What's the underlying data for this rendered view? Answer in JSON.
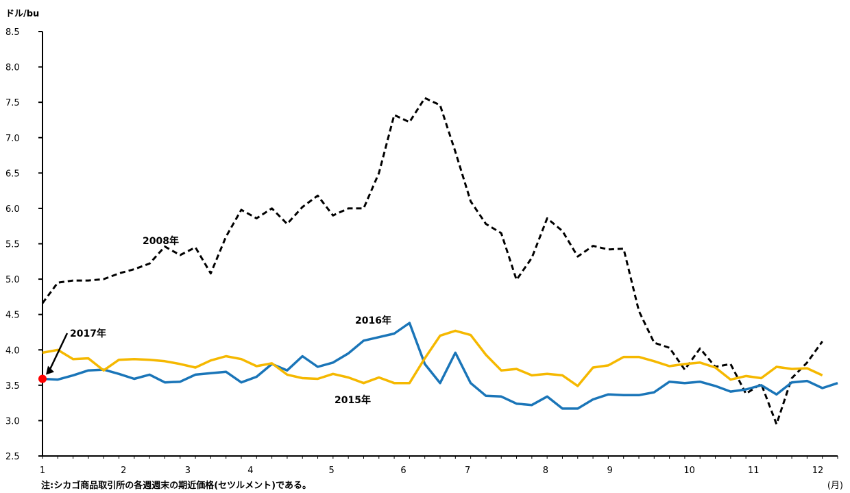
{
  "chart_data": {
    "type": "line",
    "ylabel": "ドル/bu",
    "xlabel": "(月)",
    "note": "注:シカゴ商品取引所の各週週末の期近価格(セツルメント)である。",
    "ylim": [
      2.5,
      8.5
    ],
    "yticks": [
      "2.5",
      "3.0",
      "3.5",
      "4.0",
      "4.5",
      "5.0",
      "5.5",
      "6.0",
      "6.5",
      "7.0",
      "7.5",
      "8.0",
      "8.5"
    ],
    "x_weeks": 53,
    "month_ticks": [
      {
        "label": "1",
        "week": 0
      },
      {
        "label": "2",
        "week": 5.3
      },
      {
        "label": "3",
        "week": 9.5
      },
      {
        "label": "4",
        "week": 13.6
      },
      {
        "label": "5",
        "week": 18.9
      },
      {
        "label": "6",
        "week": 23.6
      },
      {
        "label": "7",
        "week": 27.8
      },
      {
        "label": "8",
        "week": 32.9
      },
      {
        "label": "9",
        "week": 37.1
      },
      {
        "label": "10",
        "week": 42.3
      },
      {
        "label": "11",
        "week": 46.5
      },
      {
        "label": "12",
        "week": 50.7
      }
    ],
    "series": [
      {
        "name": "2008年",
        "color": "#000000",
        "style": "dashed",
        "values": [
          4.66,
          4.95,
          4.98,
          4.98,
          5.0,
          5.08,
          5.14,
          5.22,
          5.46,
          5.34,
          5.45,
          5.08,
          5.6,
          5.98,
          5.86,
          6.0,
          5.78,
          6.02,
          6.18,
          5.9,
          6.0,
          6.0,
          6.5,
          7.32,
          7.22,
          7.56,
          7.46,
          6.8,
          6.1,
          5.78,
          5.65,
          4.99,
          5.3,
          5.86,
          5.68,
          5.32,
          5.47,
          5.42,
          5.43,
          4.55,
          4.1,
          4.03,
          3.72,
          4.02,
          3.76,
          3.8,
          3.38,
          3.52,
          2.95,
          3.6,
          3.82,
          4.12
        ]
      },
      {
        "name": "2016年",
        "color": "#1a75b8",
        "style": "solid",
        "values": [
          3.59,
          3.58,
          3.64,
          3.71,
          3.72,
          3.66,
          3.59,
          3.65,
          3.54,
          3.55,
          3.65,
          3.67,
          3.69,
          3.54,
          3.62,
          3.8,
          3.71,
          3.91,
          3.76,
          3.82,
          3.95,
          4.13,
          4.18,
          4.23,
          4.38,
          3.8,
          3.53,
          3.96,
          3.53,
          3.35,
          3.34,
          3.24,
          3.22,
          3.34,
          3.17,
          3.17,
          3.3,
          3.37,
          3.36,
          3.36,
          3.4,
          3.55,
          3.53,
          3.55,
          3.49,
          3.41,
          3.44,
          3.5,
          3.37,
          3.54,
          3.56,
          3.46,
          3.53
        ]
      },
      {
        "name": "2015年",
        "color": "#f5b800",
        "style": "solid",
        "values": [
          3.96,
          4.0,
          3.87,
          3.88,
          3.71,
          3.86,
          3.87,
          3.86,
          3.84,
          3.8,
          3.75,
          3.85,
          3.91,
          3.87,
          3.77,
          3.81,
          3.65,
          3.6,
          3.59,
          3.66,
          3.61,
          3.53,
          3.61,
          3.53,
          3.53,
          3.88,
          4.2,
          4.27,
          4.21,
          3.93,
          3.71,
          3.73,
          3.64,
          3.66,
          3.64,
          3.49,
          3.75,
          3.78,
          3.9,
          3.9,
          3.84,
          3.77,
          3.8,
          3.82,
          3.75,
          3.58,
          3.63,
          3.6,
          3.76,
          3.73,
          3.74,
          3.64
        ]
      },
      {
        "name": "2017年",
        "color": "#ff0000",
        "style": "point",
        "values": [
          3.59
        ]
      }
    ],
    "annotations": [
      {
        "text": "2008年",
        "series": "2008年"
      },
      {
        "text": "2016年",
        "series": "2016年"
      },
      {
        "text": "2015年",
        "series": "2015年"
      },
      {
        "text": "2017年",
        "series": "2017年"
      }
    ]
  }
}
